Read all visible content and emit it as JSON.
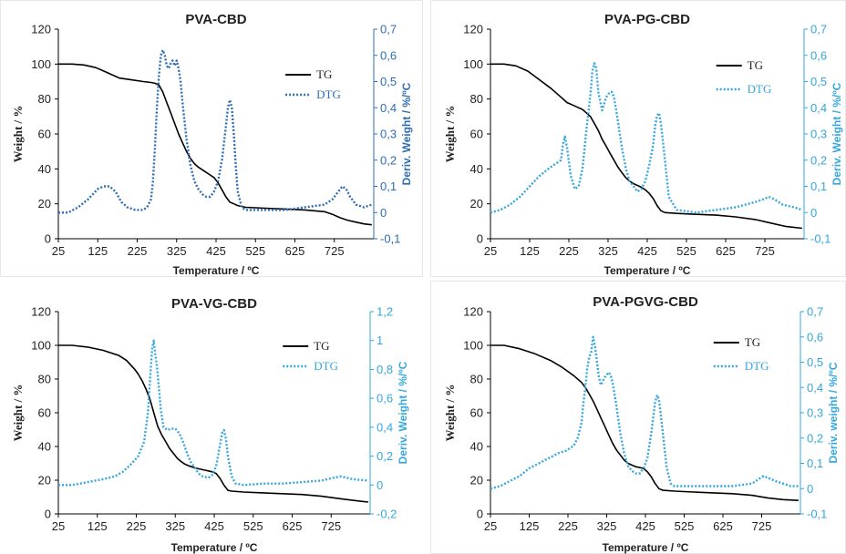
{
  "chart_data": [
    {
      "type": "line",
      "title": "PVA-CBD",
      "xlabel": "Temperature / ºC",
      "ylabel": "Weight / %",
      "y2label": "Deriv. Weight / %/ºC",
      "xlim": [
        25,
        825
      ],
      "ylim": [
        0,
        120
      ],
      "y2lim": [
        -0.1,
        0.7
      ],
      "x_ticks": [
        "25",
        "125",
        "225",
        "325",
        "425",
        "525",
        "625",
        "725"
      ],
      "y_ticks": [
        "0",
        "20",
        "40",
        "60",
        "80",
        "100",
        "120"
      ],
      "y2_ticks": [
        "-0,1",
        "0",
        "0,1",
        "0,2",
        "0,3",
        "0,4",
        "0,5",
        "0,6",
        "0,7"
      ],
      "dtg_color": "#2e6db4",
      "tg_color": "#000000",
      "legend_position": "top-right",
      "series": [
        {
          "name": "TG",
          "axis": "left",
          "style": "solid",
          "x": [
            25,
            60,
            90,
            120,
            150,
            180,
            210,
            240,
            260,
            270,
            280,
            290,
            300,
            310,
            320,
            330,
            340,
            350,
            360,
            370,
            380,
            390,
            400,
            410,
            420,
            430,
            440,
            450,
            460,
            470,
            480,
            500,
            550,
            600,
            650,
            700,
            720,
            740,
            760,
            780,
            800,
            820
          ],
          "y": [
            100,
            100,
            99.5,
            98,
            95,
            92,
            91,
            90,
            89.5,
            89,
            88,
            84,
            78,
            72,
            66,
            60,
            55,
            50,
            46,
            43,
            41,
            39.5,
            38,
            36.5,
            35,
            32,
            28,
            24,
            21,
            20,
            19,
            18,
            17.5,
            17,
            16.5,
            15.5,
            14,
            12,
            10.5,
            9.5,
            8.5,
            8
          ]
        },
        {
          "name": "DTG",
          "axis": "right",
          "style": "dotted",
          "x": [
            25,
            50,
            75,
            100,
            125,
            140,
            155,
            170,
            185,
            200,
            220,
            240,
            250,
            260,
            265,
            270,
            275,
            280,
            285,
            290,
            295,
            300,
            305,
            310,
            315,
            320,
            325,
            330,
            335,
            340,
            345,
            350,
            360,
            370,
            380,
            390,
            400,
            410,
            420,
            430,
            440,
            450,
            455,
            460,
            465,
            470,
            475,
            480,
            490,
            500,
            550,
            600,
            650,
            700,
            720,
            735,
            745,
            755,
            765,
            780,
            800,
            820
          ],
          "y": [
            0.0,
            0.0,
            0.02,
            0.05,
            0.09,
            0.1,
            0.1,
            0.08,
            0.04,
            0.02,
            0.01,
            0.01,
            0.02,
            0.05,
            0.12,
            0.25,
            0.4,
            0.52,
            0.6,
            0.62,
            0.6,
            0.56,
            0.55,
            0.57,
            0.58,
            0.56,
            0.58,
            0.55,
            0.5,
            0.42,
            0.35,
            0.28,
            0.18,
            0.12,
            0.09,
            0.07,
            0.06,
            0.06,
            0.08,
            0.12,
            0.2,
            0.33,
            0.4,
            0.43,
            0.4,
            0.3,
            0.18,
            0.08,
            0.02,
            0.01,
            0.01,
            0.01,
            0.02,
            0.03,
            0.05,
            0.08,
            0.1,
            0.09,
            0.06,
            0.03,
            0.02,
            0.03
          ]
        }
      ]
    },
    {
      "type": "line",
      "title": "PVA-PG-CBD",
      "xlabel": "Temperature / ºC",
      "ylabel": "Weight / %",
      "y2label": "Deriv. Weight / %/ºC",
      "xlim": [
        25,
        825
      ],
      "ylim": [
        0,
        120
      ],
      "y2lim": [
        -0.1,
        0.7
      ],
      "x_ticks": [
        "25",
        "125",
        "225",
        "325",
        "425",
        "525",
        "625",
        "725"
      ],
      "y_ticks": [
        "0",
        "20",
        "40",
        "60",
        "80",
        "100",
        "120"
      ],
      "y2_ticks": [
        "-0,1",
        "0",
        "0,1",
        "0,2",
        "0,3",
        "0,4",
        "0,5",
        "0,6",
        "0,7"
      ],
      "dtg_color": "#35a7de",
      "tg_color": "#000000",
      "legend_position": "top-right",
      "series": [
        {
          "name": "TG",
          "axis": "left",
          "style": "solid",
          "x": [
            25,
            60,
            90,
            120,
            150,
            180,
            200,
            220,
            240,
            260,
            280,
            290,
            300,
            310,
            320,
            330,
            340,
            350,
            360,
            370,
            380,
            390,
            400,
            410,
            420,
            430,
            440,
            450,
            460,
            470,
            500,
            550,
            600,
            650,
            700,
            740,
            780,
            820
          ],
          "y": [
            100,
            100,
            99,
            96,
            91,
            86,
            82,
            78,
            76,
            74,
            70,
            66,
            62,
            57,
            53,
            49,
            45,
            41,
            38,
            35,
            33,
            31.5,
            30.5,
            29.5,
            28,
            26,
            23,
            19,
            16,
            15,
            14.5,
            14,
            13.5,
            12.5,
            11,
            9,
            7,
            6
          ]
        },
        {
          "name": "DTG",
          "axis": "right",
          "style": "dotted",
          "x": [
            25,
            50,
            75,
            100,
            125,
            150,
            175,
            195,
            205,
            210,
            215,
            220,
            230,
            240,
            250,
            260,
            270,
            280,
            285,
            290,
            295,
            300,
            310,
            320,
            330,
            335,
            340,
            350,
            360,
            370,
            380,
            390,
            400,
            410,
            420,
            430,
            440,
            445,
            450,
            455,
            460,
            470,
            480,
            500,
            550,
            600,
            650,
            700,
            720,
            735,
            750,
            770,
            800,
            820
          ],
          "y": [
            0.0,
            0.01,
            0.03,
            0.06,
            0.1,
            0.14,
            0.17,
            0.19,
            0.2,
            0.26,
            0.29,
            0.25,
            0.14,
            0.09,
            0.1,
            0.17,
            0.32,
            0.45,
            0.54,
            0.57,
            0.55,
            0.46,
            0.39,
            0.44,
            0.46,
            0.46,
            0.44,
            0.35,
            0.25,
            0.17,
            0.12,
            0.1,
            0.08,
            0.09,
            0.12,
            0.18,
            0.26,
            0.33,
            0.37,
            0.38,
            0.34,
            0.2,
            0.06,
            0.01,
            0.0,
            0.01,
            0.02,
            0.04,
            0.05,
            0.06,
            0.05,
            0.03,
            0.02,
            0.01
          ]
        }
      ]
    },
    {
      "type": "line",
      "title": "PVA-VG-CBD",
      "xlabel": "Temperature / ºC",
      "ylabel": "Weight / %",
      "y2label": "Deriv. Weight / %/ºC",
      "xlim": [
        25,
        825
      ],
      "ylim": [
        0,
        120
      ],
      "y2lim": [
        -0.2,
        1.2
      ],
      "x_ticks": [
        "25",
        "125",
        "225",
        "325",
        "425",
        "525",
        "625",
        "725"
      ],
      "y_ticks": [
        "0",
        "20",
        "40",
        "60",
        "80",
        "100",
        "120"
      ],
      "y2_ticks": [
        "-0,2",
        "0",
        "0,2",
        "0,4",
        "0,6",
        "0,8",
        "1",
        "1,2"
      ],
      "dtg_color": "#35a7de",
      "tg_color": "#000000",
      "legend_position": "top-right",
      "series": [
        {
          "name": "TG",
          "axis": "left",
          "style": "solid",
          "x": [
            25,
            60,
            100,
            140,
            180,
            200,
            220,
            230,
            240,
            250,
            260,
            270,
            280,
            290,
            300,
            310,
            320,
            330,
            340,
            350,
            360,
            380,
            400,
            420,
            430,
            440,
            450,
            460,
            470,
            500,
            550,
            600,
            650,
            700,
            750,
            800,
            820
          ],
          "y": [
            100,
            100,
            99,
            97,
            94,
            91,
            86,
            83,
            79,
            74,
            68,
            60,
            52,
            47,
            43,
            39,
            36,
            33,
            31,
            29.5,
            28.5,
            27,
            26,
            25,
            24,
            21,
            17,
            14,
            13.5,
            13,
            12.5,
            12,
            11.5,
            10.5,
            9,
            7.5,
            7
          ]
        },
        {
          "name": "DTG",
          "axis": "right",
          "style": "dotted",
          "x": [
            25,
            60,
            100,
            140,
            170,
            190,
            210,
            230,
            245,
            255,
            262,
            266,
            270,
            274,
            278,
            282,
            288,
            295,
            305,
            315,
            325,
            335,
            345,
            355,
            365,
            375,
            385,
            395,
            410,
            420,
            430,
            440,
            445,
            450,
            455,
            460,
            470,
            480,
            500,
            550,
            600,
            650,
            700,
            730,
            750,
            780,
            820
          ],
          "y": [
            0.0,
            0.0,
            0.02,
            0.04,
            0.06,
            0.09,
            0.14,
            0.2,
            0.3,
            0.5,
            0.8,
            0.95,
            1.0,
            0.9,
            0.82,
            0.7,
            0.52,
            0.4,
            0.38,
            0.39,
            0.39,
            0.36,
            0.3,
            0.22,
            0.16,
            0.12,
            0.08,
            0.06,
            0.05,
            0.07,
            0.13,
            0.28,
            0.36,
            0.38,
            0.32,
            0.2,
            0.06,
            0.01,
            0.0,
            0.01,
            0.01,
            0.02,
            0.03,
            0.05,
            0.06,
            0.04,
            0.03
          ]
        }
      ]
    },
    {
      "type": "line",
      "title": "PVA-PGVG-CBD",
      "xlabel": "Temperature / ºC",
      "ylabel": "Weight / %",
      "y2label": "Deriv. weight / %/ºC",
      "xlim": [
        25,
        825
      ],
      "ylim": [
        0,
        120
      ],
      "y2lim": [
        -0.1,
        0.7
      ],
      "x_ticks": [
        "25",
        "125",
        "225",
        "325",
        "425",
        "525",
        "625",
        "725"
      ],
      "y_ticks": [
        "0",
        "20",
        "40",
        "60",
        "80",
        "100",
        "120"
      ],
      "y2_ticks": [
        "-0,1",
        "0",
        "0,1",
        "0,2",
        "0,3",
        "0,4",
        "0,5",
        "0,6",
        "0,7"
      ],
      "dtg_color": "#35a7de",
      "tg_color": "#000000",
      "legend_position": "top-right",
      "series": [
        {
          "name": "TG",
          "axis": "left",
          "style": "solid",
          "x": [
            25,
            60,
            100,
            140,
            180,
            210,
            240,
            260,
            270,
            280,
            290,
            300,
            310,
            320,
            330,
            340,
            350,
            360,
            370,
            380,
            390,
            400,
            420,
            430,
            440,
            450,
            460,
            470,
            500,
            550,
            600,
            650,
            700,
            740,
            780,
            820
          ],
          "y": [
            100,
            100,
            98,
            95,
            91,
            87,
            82,
            78,
            75,
            71,
            67,
            62,
            57,
            52,
            47,
            42,
            38,
            35,
            32,
            30,
            29,
            28,
            27,
            25,
            22,
            18,
            15,
            14,
            13.5,
            13,
            12.5,
            12,
            11,
            9.5,
            8.5,
            8
          ]
        },
        {
          "name": "DTG",
          "axis": "right",
          "style": "dotted",
          "x": [
            25,
            50,
            75,
            100,
            125,
            150,
            175,
            200,
            220,
            240,
            250,
            260,
            265,
            270,
            275,
            280,
            285,
            290,
            295,
            300,
            305,
            310,
            320,
            330,
            335,
            340,
            350,
            360,
            370,
            380,
            390,
            400,
            410,
            420,
            430,
            440,
            450,
            455,
            460,
            470,
            480,
            490,
            500,
            550,
            600,
            650,
            700,
            720,
            730,
            745,
            760,
            780,
            800,
            820
          ],
          "y": [
            0.0,
            0.01,
            0.03,
            0.05,
            0.08,
            0.1,
            0.12,
            0.14,
            0.15,
            0.17,
            0.2,
            0.26,
            0.34,
            0.4,
            0.48,
            0.52,
            0.54,
            0.6,
            0.56,
            0.5,
            0.44,
            0.41,
            0.44,
            0.46,
            0.45,
            0.42,
            0.33,
            0.22,
            0.14,
            0.09,
            0.07,
            0.06,
            0.06,
            0.08,
            0.12,
            0.22,
            0.34,
            0.37,
            0.35,
            0.22,
            0.08,
            0.02,
            0.01,
            0.01,
            0.01,
            0.01,
            0.02,
            0.04,
            0.05,
            0.04,
            0.03,
            0.02,
            0.01,
            0.01
          ]
        }
      ]
    }
  ]
}
